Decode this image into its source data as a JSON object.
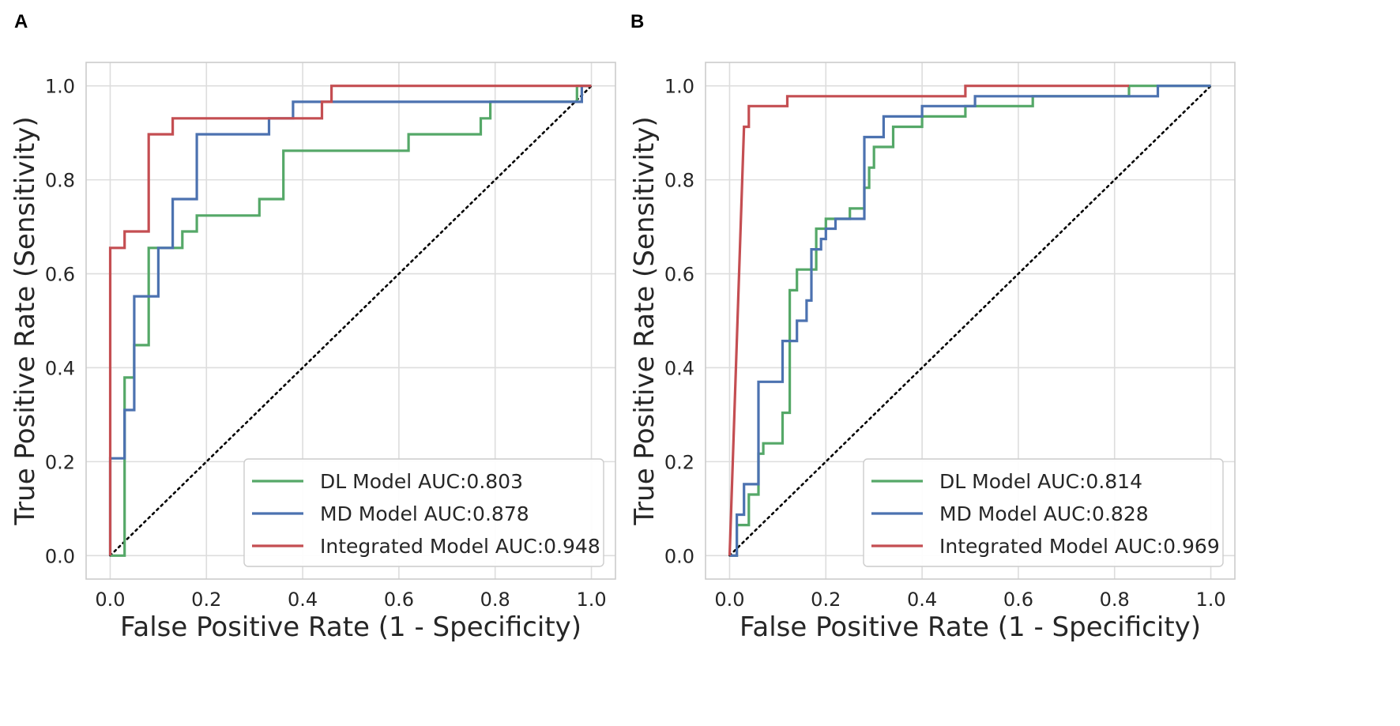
{
  "colors": {
    "dl": "#55a868",
    "md": "#4c72b0",
    "integrated": "#c44e52",
    "grid": "#dddddd",
    "diagonal": "#000000"
  },
  "chart_data": [
    {
      "type": "line",
      "panel_label": "A",
      "xlabel": "False Positive Rate (1 - Specificity)",
      "ylabel": "True Positive Rate (Sensitivity)",
      "xlim": [
        -0.05,
        1.05
      ],
      "ylim": [
        -0.05,
        1.05
      ],
      "xticks": [
        "0.0",
        "0.2",
        "0.4",
        "0.6",
        "0.8",
        "1.0"
      ],
      "yticks": [
        "0.0",
        "0.2",
        "0.4",
        "0.6",
        "0.8",
        "1.0"
      ],
      "grid": true,
      "legend_position": "lower-right",
      "diagonal": true,
      "series": [
        {
          "name": "DL Model AUC:0.803",
          "color_key": "dl",
          "points": [
            [
              0,
              0
            ],
            [
              0.03,
              0
            ],
            [
              0.03,
              0.379
            ],
            [
              0.05,
              0.379
            ],
            [
              0.05,
              0.448
            ],
            [
              0.08,
              0.448
            ],
            [
              0.08,
              0.655
            ],
            [
              0.15,
              0.655
            ],
            [
              0.15,
              0.69
            ],
            [
              0.18,
              0.69
            ],
            [
              0.18,
              0.724
            ],
            [
              0.31,
              0.724
            ],
            [
              0.31,
              0.759
            ],
            [
              0.36,
              0.759
            ],
            [
              0.36,
              0.862
            ],
            [
              0.62,
              0.862
            ],
            [
              0.62,
              0.897
            ],
            [
              0.77,
              0.897
            ],
            [
              0.77,
              0.931
            ],
            [
              0.79,
              0.931
            ],
            [
              0.79,
              0.966
            ],
            [
              0.97,
              0.966
            ],
            [
              0.97,
              1.0
            ],
            [
              1.0,
              1.0
            ]
          ]
        },
        {
          "name": "MD Model AUC:0.878",
          "color_key": "md",
          "points": [
            [
              0,
              0
            ],
            [
              0,
              0.207
            ],
            [
              0.03,
              0.207
            ],
            [
              0.03,
              0.31
            ],
            [
              0.05,
              0.31
            ],
            [
              0.05,
              0.552
            ],
            [
              0.1,
              0.552
            ],
            [
              0.1,
              0.655
            ],
            [
              0.13,
              0.655
            ],
            [
              0.13,
              0.759
            ],
            [
              0.18,
              0.759
            ],
            [
              0.18,
              0.897
            ],
            [
              0.33,
              0.897
            ],
            [
              0.33,
              0.931
            ],
            [
              0.38,
              0.931
            ],
            [
              0.38,
              0.966
            ],
            [
              0.98,
              0.966
            ],
            [
              0.98,
              1.0
            ],
            [
              1.0,
              1.0
            ]
          ]
        },
        {
          "name": "Integrated Model AUC:0.948",
          "color_key": "integrated",
          "points": [
            [
              0,
              0
            ],
            [
              0,
              0.655
            ],
            [
              0.03,
              0.655
            ],
            [
              0.03,
              0.69
            ],
            [
              0.08,
              0.69
            ],
            [
              0.08,
              0.897
            ],
            [
              0.13,
              0.897
            ],
            [
              0.13,
              0.931
            ],
            [
              0.44,
              0.931
            ],
            [
              0.44,
              0.966
            ],
            [
              0.46,
              0.966
            ],
            [
              0.46,
              1.0
            ],
            [
              1.0,
              1.0
            ]
          ]
        }
      ]
    },
    {
      "type": "line",
      "panel_label": "B",
      "xlabel": "False Positive Rate (1 - Specificity)",
      "ylabel": "True Positive Rate (Sensitivity)",
      "xlim": [
        -0.05,
        1.05
      ],
      "ylim": [
        -0.05,
        1.05
      ],
      "xticks": [
        "0.0",
        "0.2",
        "0.4",
        "0.6",
        "0.8",
        "1.0"
      ],
      "yticks": [
        "0.0",
        "0.2",
        "0.4",
        "0.6",
        "0.8",
        "1.0"
      ],
      "grid": true,
      "legend_position": "lower-right",
      "diagonal": true,
      "series": [
        {
          "name": "DL Model AUC:0.814",
          "color_key": "dl",
          "points": [
            [
              0,
              0
            ],
            [
              0.015,
              0
            ],
            [
              0.015,
              0.065
            ],
            [
              0.04,
              0.065
            ],
            [
              0.04,
              0.13
            ],
            [
              0.06,
              0.13
            ],
            [
              0.06,
              0.217
            ],
            [
              0.07,
              0.217
            ],
            [
              0.07,
              0.239
            ],
            [
              0.11,
              0.239
            ],
            [
              0.11,
              0.304
            ],
            [
              0.125,
              0.304
            ],
            [
              0.125,
              0.565
            ],
            [
              0.14,
              0.565
            ],
            [
              0.14,
              0.609
            ],
            [
              0.18,
              0.609
            ],
            [
              0.18,
              0.696
            ],
            [
              0.2,
              0.696
            ],
            [
              0.2,
              0.717
            ],
            [
              0.25,
              0.717
            ],
            [
              0.25,
              0.739
            ],
            [
              0.28,
              0.739
            ],
            [
              0.28,
              0.783
            ],
            [
              0.29,
              0.783
            ],
            [
              0.29,
              0.826
            ],
            [
              0.3,
              0.826
            ],
            [
              0.3,
              0.87
            ],
            [
              0.34,
              0.87
            ],
            [
              0.34,
              0.913
            ],
            [
              0.4,
              0.913
            ],
            [
              0.4,
              0.935
            ],
            [
              0.49,
              0.935
            ],
            [
              0.49,
              0.957
            ],
            [
              0.63,
              0.957
            ],
            [
              0.63,
              0.978
            ],
            [
              0.83,
              0.978
            ],
            [
              0.83,
              1.0
            ],
            [
              1.0,
              1.0
            ]
          ]
        },
        {
          "name": "MD Model AUC:0.828",
          "color_key": "md",
          "points": [
            [
              0,
              0
            ],
            [
              0.015,
              0
            ],
            [
              0.015,
              0.087
            ],
            [
              0.03,
              0.087
            ],
            [
              0.03,
              0.152
            ],
            [
              0.06,
              0.152
            ],
            [
              0.06,
              0.37
            ],
            [
              0.11,
              0.37
            ],
            [
              0.11,
              0.457
            ],
            [
              0.14,
              0.457
            ],
            [
              0.14,
              0.5
            ],
            [
              0.16,
              0.5
            ],
            [
              0.16,
              0.543
            ],
            [
              0.17,
              0.543
            ],
            [
              0.17,
              0.652
            ],
            [
              0.19,
              0.652
            ],
            [
              0.19,
              0.674
            ],
            [
              0.2,
              0.674
            ],
            [
              0.2,
              0.696
            ],
            [
              0.22,
              0.696
            ],
            [
              0.22,
              0.717
            ],
            [
              0.28,
              0.717
            ],
            [
              0.28,
              0.891
            ],
            [
              0.32,
              0.891
            ],
            [
              0.32,
              0.935
            ],
            [
              0.4,
              0.935
            ],
            [
              0.4,
              0.957
            ],
            [
              0.51,
              0.957
            ],
            [
              0.51,
              0.978
            ],
            [
              0.89,
              0.978
            ],
            [
              0.89,
              1.0
            ],
            [
              1.0,
              1.0
            ]
          ]
        },
        {
          "name": "Integrated Model AUC:0.969",
          "color_key": "integrated",
          "points": [
            [
              0,
              0
            ],
            [
              0.03,
              0.913
            ],
            [
              0.04,
              0.913
            ],
            [
              0.04,
              0.957
            ],
            [
              0.12,
              0.957
            ],
            [
              0.12,
              0.978
            ],
            [
              0.49,
              0.978
            ],
            [
              0.49,
              1.0
            ],
            [
              0.83,
              1.0
            ]
          ]
        }
      ]
    }
  ]
}
